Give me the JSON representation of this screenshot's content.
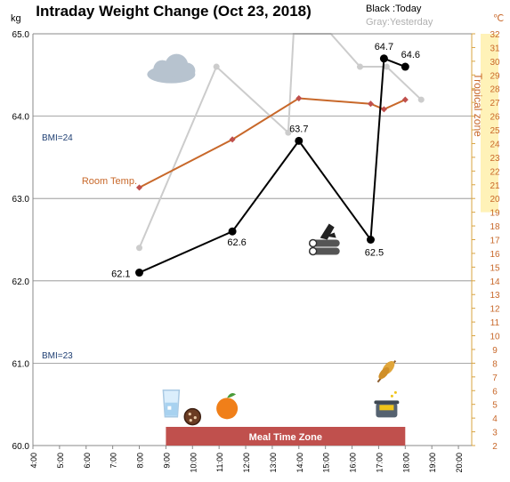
{
  "chart_data": {
    "type": "line",
    "title": "Intraday Weight Change (Oct 23, 2018)",
    "legend": {
      "today": "Black :Today",
      "yesterday": "Gray:Yesterday",
      "placement": "top-right"
    },
    "y_unit_left": "kg",
    "y_unit_right": "℃",
    "xlim": [
      4,
      20.5
    ],
    "ylim": [
      60.0,
      65.0
    ],
    "y2lim": [
      2,
      32
    ],
    "x_ticks": [
      "4:00",
      "5:00",
      "6:00",
      "7:00",
      "8:00",
      "9:00",
      "10:00",
      "11:00",
      "12:00",
      "13:00",
      "14:00",
      "15:00",
      "16:00",
      "17:00",
      "18:00",
      "19:00",
      "20:00"
    ],
    "x_tick_values": [
      4,
      5,
      6,
      7,
      8,
      9,
      10,
      11,
      12,
      13,
      14,
      15,
      16,
      17,
      18,
      19,
      20
    ],
    "y_ticks": [
      "60.0",
      "61.0",
      "62.0",
      "63.0",
      "64.0",
      "65.0"
    ],
    "y_tick_values": [
      60.0,
      61.0,
      62.0,
      63.0,
      64.0,
      65.0
    ],
    "y2_ticks": [
      "2",
      "3",
      "4",
      "5",
      "6",
      "7",
      "8",
      "9",
      "10",
      "11",
      "12",
      "13",
      "14",
      "15",
      "16",
      "17",
      "18",
      "19",
      "20",
      "21",
      "22",
      "23",
      "24",
      "25",
      "26",
      "27",
      "28",
      "29",
      "30",
      "31",
      "32"
    ],
    "grid": "horizontal",
    "series": [
      {
        "key": "today",
        "color": "#000000",
        "x": [
          8.0,
          11.5,
          14.0,
          16.7,
          17.2,
          18.0
        ],
        "y": [
          62.1,
          62.6,
          63.7,
          62.5,
          64.7,
          64.6
        ],
        "labels": [
          "62.1",
          "62.6",
          "63.7",
          "62.5",
          "64.7",
          "64.6"
        ]
      },
      {
        "key": "yesterday",
        "color": "#cccccc",
        "x": [
          8.0,
          10.9,
          13.6,
          13.8,
          15.2,
          16.3,
          17.3,
          18.6
        ],
        "y": [
          62.4,
          64.6,
          63.8,
          65.0,
          65.0,
          64.6,
          64.6,
          64.2
        ]
      },
      {
        "key": "room_temp",
        "name": "Room Temp.",
        "color": "#c8682a",
        "axis": "right",
        "x": [
          8.0,
          11.5,
          14.0,
          16.7,
          17.2,
          18.0
        ],
        "y": [
          20.8,
          24.3,
          27.3,
          26.9,
          26.5,
          27.2
        ]
      }
    ],
    "bands": [
      {
        "label": "Tropical zone",
        "axis": "right",
        "from": 19,
        "to": 32,
        "color": "#fff2b8"
      }
    ],
    "reference_lines": [
      {
        "label": "BMI=24",
        "y": 63.85
      },
      {
        "label": "BMI=23",
        "y": 61.05
      }
    ],
    "meal_zone": {
      "label": "Meal Time Zone",
      "from": 9,
      "to": 18,
      "color": "#c0504d"
    },
    "annotations": [
      {
        "icon": "cloud-icon",
        "x": 9.2,
        "y": 64.55
      },
      {
        "icon": "firewood-icon",
        "x": 15.0,
        "y": 62.5
      },
      {
        "icon": "water-glass-icon",
        "x": 9.2,
        "y": 60.5
      },
      {
        "icon": "cookies-icon",
        "x": 10.0,
        "y": 60.35
      },
      {
        "icon": "orange-icon",
        "x": 11.3,
        "y": 60.45
      },
      {
        "icon": "wheat-icon",
        "x": 17.3,
        "y": 60.9
      },
      {
        "icon": "cooking-pot-icon",
        "x": 17.3,
        "y": 60.45
      }
    ]
  }
}
